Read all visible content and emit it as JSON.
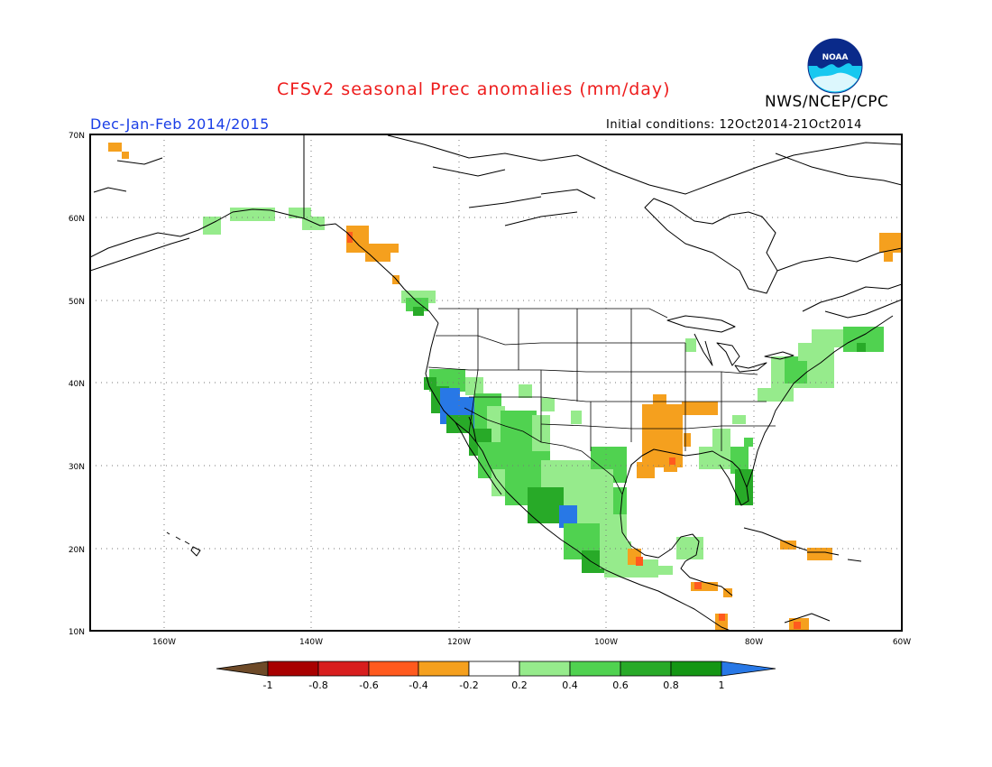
{
  "header": {
    "title": "CFSv2 seasonal Prec anomalies (mm/day)",
    "org": "NWS/NCEP/CPC",
    "season": "Dec-Jan-Feb 2014/2015",
    "init": "Initial conditions: 12Oct2014-21Oct2014",
    "logo_text": "NOAA"
  },
  "map": {
    "lon_range": [
      -170,
      -60
    ],
    "lat_range": [
      10,
      70
    ],
    "lat_ticks": [
      "70N",
      "60N",
      "50N",
      "40N",
      "30N",
      "20N",
      "10N"
    ],
    "lon_ticks": [
      "160W",
      "140W",
      "120W",
      "100W",
      "80W",
      "60W"
    ],
    "gridlines": "dotted"
  },
  "colorbar": {
    "labels": [
      "-1",
      "-0.8",
      "-0.6",
      "-0.4",
      "-0.2",
      "0.2",
      "0.4",
      "0.6",
      "0.8",
      "1"
    ],
    "colors": [
      "#6e4a28",
      "#a80000",
      "#d81e1e",
      "#ff5a1e",
      "#f5a01e",
      "#ffffff",
      "#96eb8c",
      "#50d250",
      "#28aa28",
      "#149614",
      "#2878e6"
    ]
  },
  "anomaly_colors": {
    "dry_04": "#f5a01e",
    "dry_06": "#ff5a1e",
    "dry_08": "#d81e1e",
    "wet_02": "#96eb8c",
    "wet_04": "#50d250",
    "wet_06": "#28aa28",
    "wet_08": "#149614",
    "wet_10": "#2878e6"
  }
}
